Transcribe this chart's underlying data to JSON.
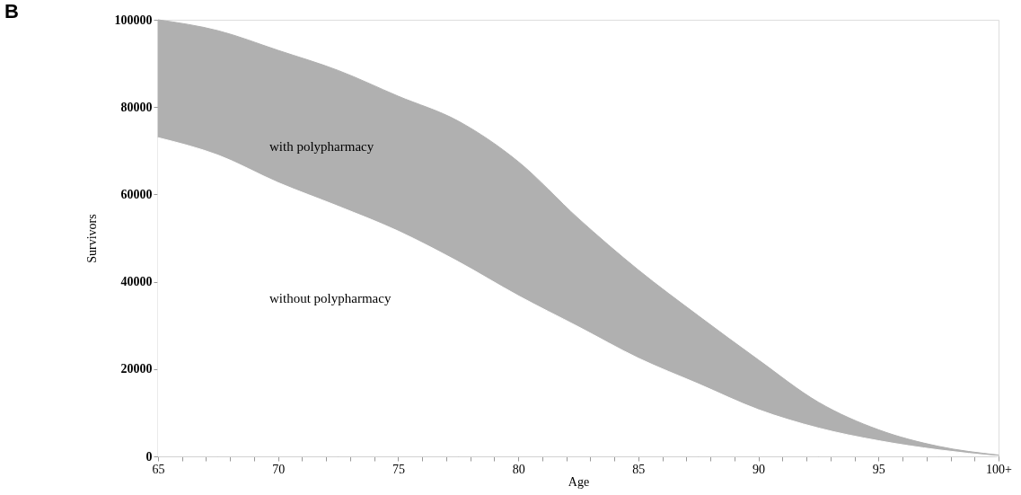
{
  "chart_data": {
    "type": "area",
    "xlabel": "Age",
    "ylabel": "Survivors",
    "x": [
      65,
      67.5,
      70,
      72.5,
      75,
      77.5,
      80,
      82.5,
      85,
      87.5,
      90,
      92.5,
      95,
      97.5,
      100
    ],
    "series": [
      {
        "color": "#b0b0b0",
        "values": [
          100000,
          97500,
          93000,
          88400,
          82500,
          76800,
          67500,
          54500,
          42700,
          32200,
          22100,
          12400,
          6100,
          2300,
          300
        ]
      },
      {
        "color": "#ffffff",
        "values": [
          73000,
          69000,
          62700,
          57300,
          51600,
          44600,
          36800,
          29700,
          22500,
          16600,
          10700,
          6500,
          3600,
          1500,
          0
        ]
      }
    ],
    "xlim": [
      65,
      100
    ],
    "ylim": [
      0,
      100000
    ],
    "xticks": [
      65,
      {
        "value": 66,
        "label": null
      },
      {
        "value": 67,
        "label": null
      },
      {
        "value": 68,
        "label": null
      },
      {
        "value": 69,
        "label": null
      },
      70,
      {
        "value": 71,
        "label": null
      },
      {
        "value": 72,
        "label": null
      },
      {
        "value": 73,
        "label": null
      },
      {
        "value": 74,
        "label": null
      },
      75,
      {
        "value": 76,
        "label": null
      },
      {
        "value": 77,
        "label": null
      },
      {
        "value": 78,
        "label": null
      },
      {
        "value": 79,
        "label": null
      },
      80,
      {
        "value": 81,
        "label": null
      },
      {
        "value": 82,
        "label": null
      },
      {
        "value": 83,
        "label": null
      },
      {
        "value": 84,
        "label": null
      },
      85,
      {
        "value": 86,
        "label": null
      },
      {
        "value": 87,
        "label": null
      },
      {
        "value": 88,
        "label": null
      },
      {
        "value": 89,
        "label": null
      },
      90,
      {
        "value": 91,
        "label": null
      },
      {
        "value": 92,
        "label": null
      },
      {
        "value": 93,
        "label": null
      },
      {
        "value": 94,
        "label": null
      },
      95,
      {
        "value": 96,
        "label": null
      },
      {
        "value": 97,
        "label": null
      },
      {
        "value": 98,
        "label": null
      },
      {
        "value": 99,
        "label": null
      },
      {
        "value": 100,
        "label": "100+"
      }
    ],
    "yticks": [
      0,
      20000,
      40000,
      60000,
      80000,
      100000
    ],
    "grid": false,
    "annotations": [
      "B",
      "with polypharmacy",
      "without polypharmacy"
    ]
  }
}
